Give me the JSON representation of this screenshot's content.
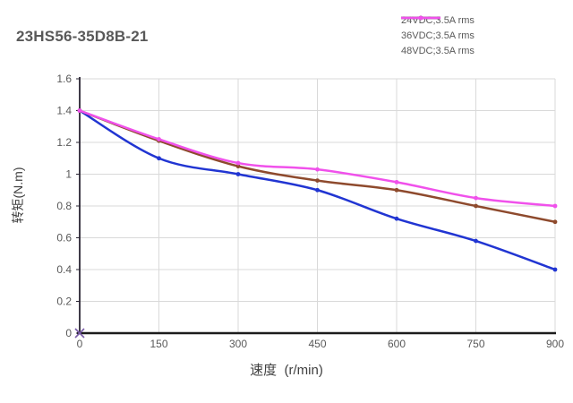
{
  "title": "23HS56-35D8B-21",
  "colors": {
    "title": "#595959",
    "tick_text": "#595959",
    "axis_title_text": "#404040",
    "grid": "#d9d9d9",
    "y_axis": "#2a2533",
    "x_axis": "#1c1c1c",
    "origin_marker": "#7a5ca8"
  },
  "chart_data": {
    "type": "line",
    "title": "23HS56-35D8B-21",
    "xlabel": "速度  (r/min)",
    "ylabel": "转矩(N.m)",
    "x": [
      0,
      150,
      300,
      450,
      600,
      750,
      900
    ],
    "series": [
      {
        "name": "24VDC;3.5A rms",
        "color": "#2135d2",
        "values": [
          1.4,
          1.1,
          1.0,
          0.9,
          0.72,
          0.58,
          0.4
        ]
      },
      {
        "name": "36VDC;3.5A rms",
        "color": "#8e4a2d",
        "values": [
          1.4,
          1.21,
          1.05,
          0.96,
          0.9,
          0.8,
          0.7
        ]
      },
      {
        "name": "48VDC;3.5A rms",
        "color": "#f051eb",
        "values": [
          1.4,
          1.22,
          1.07,
          1.03,
          0.95,
          0.85,
          0.8
        ]
      }
    ],
    "xlim": [
      0,
      900
    ],
    "ylim": [
      0,
      1.6
    ],
    "xticks": [
      0,
      150,
      300,
      450,
      600,
      750,
      900
    ],
    "yticks": [
      0,
      0.2,
      0.4,
      0.6,
      0.8,
      1,
      1.2,
      1.4,
      1.6
    ],
    "grid": true,
    "line_style": "smooth",
    "marker": "dot",
    "origin_marker": "x",
    "legend_position": "top-right"
  }
}
